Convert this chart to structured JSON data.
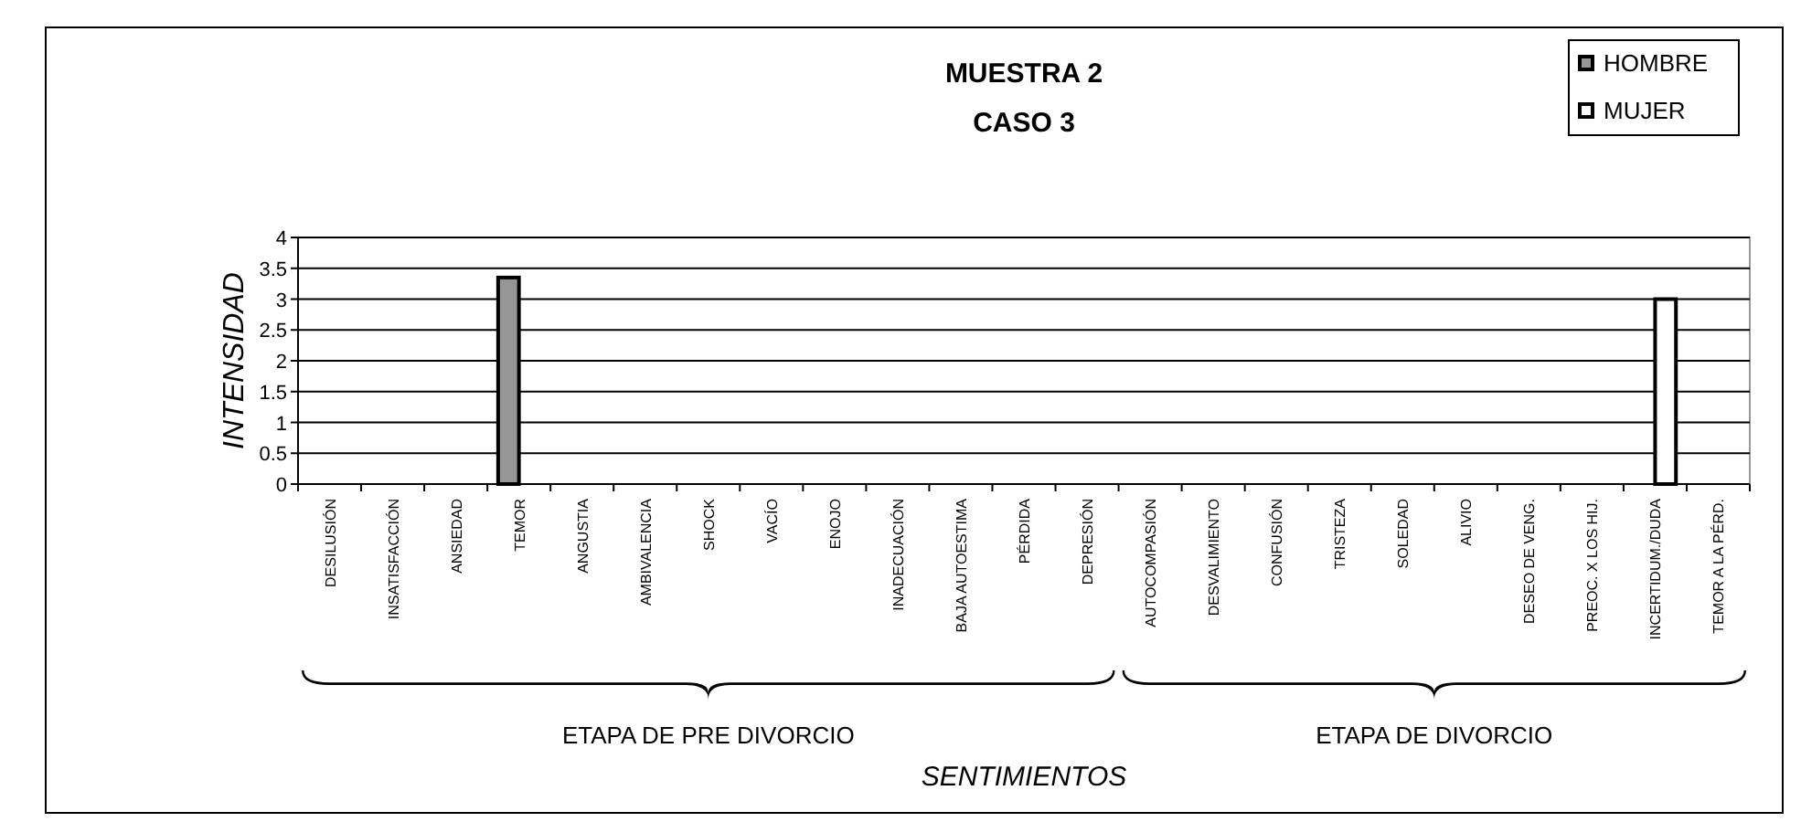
{
  "chart_data": {
    "type": "bar",
    "title": "MUESTRA 2",
    "subtitle": "CASO 3",
    "xlabel": "SENTIMIENTOS",
    "ylabel": "INTENSIDAD",
    "categories": [
      "DESILUSIÓN",
      "INSATISFACCIÓN",
      "ANSIEDAD",
      "TEMOR",
      "ANGUSTIA",
      "AMBIVALENCIA",
      "SHOCK",
      "VACÍO",
      "ENOJO",
      "INADECUACIÓN",
      "BAJA AUTOESTIMA",
      "PÉRDIDA",
      "DEPRESIÓN",
      "AUTOCOMPASIÓN",
      "DESVALIMIENTO",
      "CONFUSIÓN",
      "TRISTEZA",
      "SOLEDAD",
      "ALIVIO",
      "DESEO DE VENG.",
      "PREOC. X LOS HIJ.",
      "INCERTIDUM./DUDA",
      "TEMOR A LA PÉRD."
    ],
    "series": [
      {
        "name": "HOMBRE",
        "color": "#969696",
        "values": [
          0,
          0,
          0,
          3.35,
          0,
          0,
          0,
          0,
          0,
          0,
          0,
          0,
          0,
          0,
          0,
          0,
          0,
          0,
          0,
          0,
          0,
          0,
          0
        ]
      },
      {
        "name": "MUJER",
        "color": "#ffffff",
        "values": [
          0,
          0,
          0,
          0,
          0,
          0,
          0,
          0,
          0,
          0,
          0,
          0,
          0,
          0,
          0,
          0,
          0,
          0,
          0,
          0,
          0,
          3,
          0
        ]
      }
    ],
    "ylim": [
      0,
      4
    ],
    "yticks": [
      0,
      0.5,
      1,
      1.5,
      2,
      2.5,
      3,
      3.5,
      4
    ],
    "grid": "y",
    "legend": "top right",
    "annotations": [
      "ETAPA DE PRE DIVORCIO",
      "ETAPA DE DIVORCIO"
    ]
  }
}
